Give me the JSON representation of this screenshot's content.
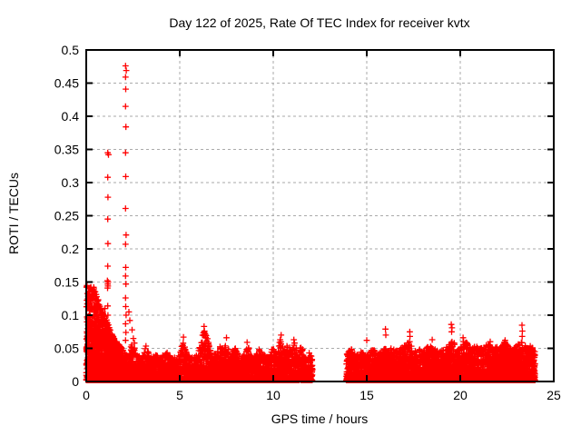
{
  "title": "Day 122 of 2025, Rate Of TEC Index for receiver kvtx",
  "x_axis": {
    "label": "GPS time / hours",
    "tick_labels": [
      "0",
      "5",
      "10",
      "15",
      "20",
      "25"
    ],
    "tick_values": [
      0,
      5,
      10,
      15,
      20,
      25
    ],
    "range": [
      0,
      25
    ]
  },
  "y_axis": {
    "label": "ROTI / TECUs",
    "tick_labels": [
      "0",
      "0.05",
      "0.1",
      "0.15",
      "0.2",
      "0.25",
      "0.3",
      "0.35",
      "0.4",
      "0.45",
      "0.5"
    ],
    "tick_values": [
      0,
      0.05,
      0.1,
      0.15,
      0.2,
      0.25,
      0.3,
      0.35,
      0.4,
      0.45,
      0.5
    ],
    "range": [
      0,
      0.5
    ]
  },
  "colors": {
    "marker": "#ff0000",
    "grid": "#aaaaaa",
    "axis": "#000000",
    "background": "#ffffff",
    "text": "#000000"
  },
  "chart_data": {
    "type": "scatter",
    "marker": "plus",
    "series_name": "ROTI",
    "title": "Day 122 of 2025, Rate Of TEC Index for receiver kvtx",
    "xlabel": "GPS time / hours",
    "ylabel": "ROTI / TECUs",
    "xlim": [
      0,
      25
    ],
    "ylim": [
      0,
      0.5
    ],
    "grid": true,
    "legend": "none",
    "data_gap_hours": [
      12.1,
      13.9
    ],
    "seed": 122,
    "spike_points": [
      [
        0.1,
        0.128
      ],
      [
        0.25,
        0.142
      ],
      [
        0.32,
        0.138
      ],
      [
        0.42,
        0.133
      ],
      [
        0.55,
        0.122
      ],
      [
        1.0,
        0.11
      ],
      [
        1.15,
        0.345
      ],
      [
        1.19,
        0.342
      ],
      [
        1.15,
        0.308
      ],
      [
        1.16,
        0.278
      ],
      [
        1.15,
        0.245
      ],
      [
        1.16,
        0.208
      ],
      [
        1.15,
        0.174
      ],
      [
        1.13,
        0.152
      ],
      [
        1.17,
        0.15
      ],
      [
        1.15,
        0.147
      ],
      [
        1.16,
        0.144
      ],
      [
        1.14,
        0.141
      ],
      [
        1.15,
        0.114
      ],
      [
        1.16,
        0.1
      ],
      [
        2.1,
        0.476
      ],
      [
        2.14,
        0.469
      ],
      [
        2.1,
        0.459
      ],
      [
        2.11,
        0.441
      ],
      [
        2.1,
        0.415
      ],
      [
        2.12,
        0.384
      ],
      [
        2.1,
        0.345
      ],
      [
        2.11,
        0.309
      ],
      [
        2.1,
        0.261
      ],
      [
        2.13,
        0.221
      ],
      [
        2.1,
        0.207
      ],
      [
        2.11,
        0.172
      ],
      [
        2.1,
        0.159
      ],
      [
        2.12,
        0.147
      ],
      [
        2.1,
        0.126
      ],
      [
        2.11,
        0.113
      ],
      [
        2.13,
        0.1
      ],
      [
        2.1,
        0.087
      ],
      [
        2.12,
        0.074
      ],
      [
        2.1,
        0.062
      ],
      [
        2.28,
        0.105
      ],
      [
        2.33,
        0.092
      ],
      [
        2.45,
        0.078
      ],
      [
        2.52,
        0.065
      ],
      [
        2.58,
        0.058
      ],
      [
        5.2,
        0.067
      ],
      [
        6.3,
        0.083
      ],
      [
        6.32,
        0.076
      ],
      [
        7.5,
        0.066
      ],
      [
        10.42,
        0.07
      ],
      [
        11.1,
        0.063
      ],
      [
        15.0,
        0.062
      ],
      [
        16.0,
        0.079
      ],
      [
        16.02,
        0.07
      ],
      [
        17.3,
        0.075
      ],
      [
        17.31,
        0.068
      ],
      [
        17.29,
        0.06
      ],
      [
        18.5,
        0.063
      ],
      [
        19.52,
        0.086
      ],
      [
        19.56,
        0.081
      ],
      [
        19.54,
        0.075
      ],
      [
        20.15,
        0.066
      ],
      [
        20.18,
        0.06
      ],
      [
        21.6,
        0.06
      ],
      [
        22.4,
        0.062
      ],
      [
        23.3,
        0.085
      ],
      [
        23.32,
        0.076
      ],
      [
        23.31,
        0.068
      ]
    ],
    "noise_segments": [
      {
        "x0": 0.0,
        "x1": 1.9,
        "n": 1800,
        "power": 1.8,
        "envelope": [
          [
            0,
            0.145
          ],
          [
            0.4,
            0.145
          ],
          [
            0.7,
            0.12
          ],
          [
            1.0,
            0.1
          ],
          [
            1.4,
            0.07
          ],
          [
            1.9,
            0.05
          ]
        ]
      },
      {
        "x0": 1.9,
        "x1": 12.1,
        "n": 3800,
        "power": 2.2,
        "envelope": [
          [
            1.9,
            0.05
          ],
          [
            2.2,
            0.04
          ],
          [
            2.5,
            0.06
          ],
          [
            2.7,
            0.04
          ],
          [
            3.0,
            0.038
          ],
          [
            3.2,
            0.055
          ],
          [
            3.4,
            0.036
          ],
          [
            3.7,
            0.04
          ],
          [
            4.0,
            0.036
          ],
          [
            4.2,
            0.05
          ],
          [
            4.5,
            0.038
          ],
          [
            4.8,
            0.036
          ],
          [
            5.0,
            0.04
          ],
          [
            5.2,
            0.065
          ],
          [
            5.4,
            0.04
          ],
          [
            5.7,
            0.038
          ],
          [
            6.0,
            0.045
          ],
          [
            6.3,
            0.08
          ],
          [
            6.5,
            0.07
          ],
          [
            6.7,
            0.04
          ],
          [
            7.0,
            0.045
          ],
          [
            7.2,
            0.055
          ],
          [
            7.35,
            0.045
          ],
          [
            7.5,
            0.065
          ],
          [
            7.7,
            0.04
          ],
          [
            8.0,
            0.055
          ],
          [
            8.2,
            0.04
          ],
          [
            8.4,
            0.038
          ],
          [
            8.6,
            0.06
          ],
          [
            8.8,
            0.04
          ],
          [
            9.0,
            0.038
          ],
          [
            9.2,
            0.05
          ],
          [
            9.5,
            0.04
          ],
          [
            9.8,
            0.038
          ],
          [
            10.0,
            0.055
          ],
          [
            10.2,
            0.04
          ],
          [
            10.4,
            0.068
          ],
          [
            10.6,
            0.045
          ],
          [
            10.8,
            0.06
          ],
          [
            11.0,
            0.045
          ],
          [
            11.1,
            0.062
          ],
          [
            11.3,
            0.045
          ],
          [
            11.5,
            0.055
          ],
          [
            11.7,
            0.04
          ],
          [
            11.9,
            0.045
          ],
          [
            12.1,
            0.035
          ]
        ]
      },
      {
        "x0": 13.9,
        "x1": 24.0,
        "n": 4200,
        "power": 2.2,
        "envelope": [
          [
            13.9,
            0.042
          ],
          [
            14.2,
            0.05
          ],
          [
            14.4,
            0.04
          ],
          [
            14.7,
            0.045
          ],
          [
            15.0,
            0.04
          ],
          [
            15.3,
            0.05
          ],
          [
            15.6,
            0.042
          ],
          [
            15.9,
            0.055
          ],
          [
            16.1,
            0.045
          ],
          [
            16.3,
            0.06
          ],
          [
            16.5,
            0.045
          ],
          [
            16.8,
            0.05
          ],
          [
            17.0,
            0.055
          ],
          [
            17.3,
            0.06
          ],
          [
            17.5,
            0.045
          ],
          [
            17.8,
            0.05
          ],
          [
            18.0,
            0.045
          ],
          [
            18.3,
            0.055
          ],
          [
            18.6,
            0.05
          ],
          [
            18.9,
            0.045
          ],
          [
            19.1,
            0.05
          ],
          [
            19.4,
            0.055
          ],
          [
            19.6,
            0.065
          ],
          [
            19.8,
            0.05
          ],
          [
            20.1,
            0.055
          ],
          [
            20.3,
            0.06
          ],
          [
            20.6,
            0.05
          ],
          [
            20.9,
            0.055
          ],
          [
            21.2,
            0.05
          ],
          [
            21.5,
            0.058
          ],
          [
            21.8,
            0.05
          ],
          [
            22.1,
            0.055
          ],
          [
            22.4,
            0.06
          ],
          [
            22.7,
            0.05
          ],
          [
            23.0,
            0.055
          ],
          [
            23.3,
            0.06
          ],
          [
            23.6,
            0.05
          ],
          [
            23.8,
            0.055
          ],
          [
            24.0,
            0.045
          ]
        ]
      }
    ]
  }
}
